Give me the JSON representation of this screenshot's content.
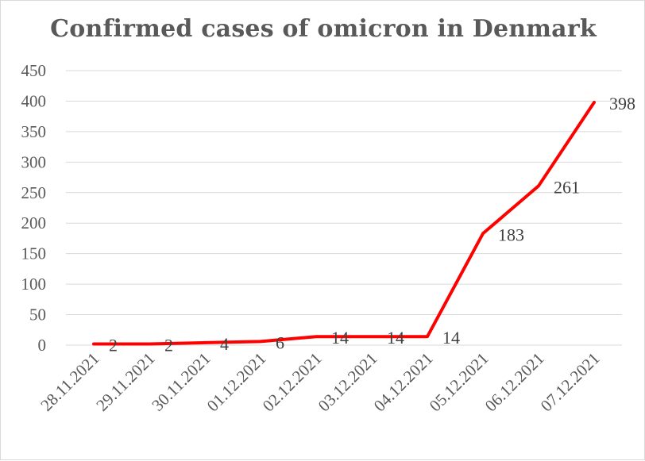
{
  "chart_data": {
    "type": "line",
    "title": "Confirmed cases of  omicron in Denmark",
    "xlabel": "",
    "ylabel": "",
    "categories": [
      "28.11.2021",
      "29.11.2021",
      "30.11.2021",
      "01.12.2021",
      "02.12.2021",
      "03.12.2021",
      "04.12.2021",
      "05.12.2021",
      "06.12.2021",
      "07.12.2021"
    ],
    "series": [
      {
        "name": "Confirmed cases",
        "values": [
          2,
          2,
          4,
          6,
          14,
          14,
          14,
          183,
          261,
          398
        ],
        "color": "#ff0000"
      }
    ],
    "data_labels": [
      "2",
      "2",
      "4",
      "6",
      "14",
      "14",
      "14",
      "183",
      "261",
      "398"
    ],
    "ylim": [
      0,
      450
    ],
    "yticks": [
      0,
      50,
      100,
      150,
      200,
      250,
      300,
      350,
      400,
      450
    ],
    "ytick_labels": [
      "0",
      "50",
      "100",
      "150",
      "200",
      "250",
      "300",
      "350",
      "400",
      "450"
    ],
    "grid": true,
    "legend": "none"
  }
}
